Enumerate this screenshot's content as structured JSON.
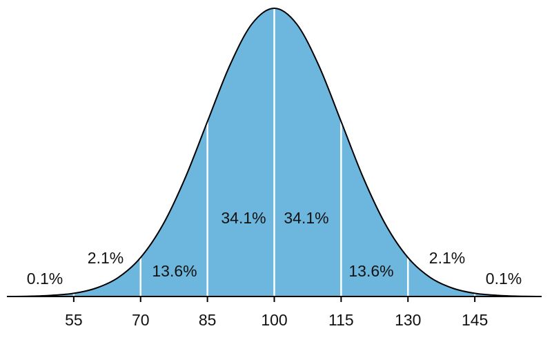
{
  "chart_data": {
    "type": "area",
    "x": [
      40,
      45,
      50,
      55,
      60,
      65,
      70,
      75,
      80,
      85,
      90,
      95,
      100,
      105,
      110,
      115,
      120,
      125,
      130,
      135,
      140,
      145,
      150,
      155,
      160
    ],
    "values": [
      0,
      0.001,
      0.004,
      0.011,
      0.029,
      0.066,
      0.135,
      0.249,
      0.411,
      0.607,
      0.801,
      0.946,
      1,
      0.946,
      0.801,
      0.607,
      0.411,
      0.249,
      0.135,
      0.066,
      0.029,
      0.011,
      0.004,
      0.001,
      0
    ],
    "color": "#000000",
    "segments": {
      "bins": [
        40,
        55,
        70,
        85,
        100,
        115,
        130,
        145,
        160
      ],
      "values": [
        0.1,
        2.1,
        13.6,
        34.1,
        34.1,
        13.6,
        2.1,
        0.1
      ],
      "value_labels": [
        "0.1%",
        "2.1%",
        "13.6%",
        "34.1%",
        "34.1%",
        "13.6%",
        "2.1%",
        "0.1%"
      ],
      "color": "#6db6dd",
      "divider_color": "#ffffff"
    },
    "xlim": [
      40,
      160
    ],
    "xticks": [
      55,
      70,
      85,
      100,
      115,
      130,
      145
    ],
    "ylim": [
      0,
      1
    ]
  }
}
